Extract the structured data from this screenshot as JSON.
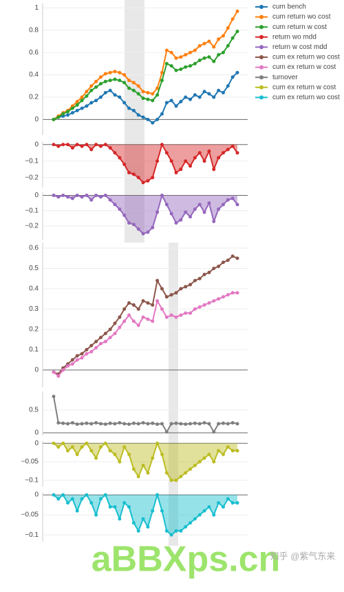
{
  "chart_data": [
    {
      "type": "line",
      "ylim": [
        -0.14,
        1.04
      ],
      "yticks": [
        0,
        0.2,
        0.4,
        0.6,
        0.8,
        1
      ],
      "grid": true,
      "series": [
        {
          "name": "cum bench",
          "color": "#1f77b4",
          "values": [
            0,
            0.02,
            0.03,
            0.04,
            0.06,
            0.08,
            0.1,
            0.12,
            0.15,
            0.17,
            0.2,
            0.24,
            0.26,
            0.22,
            0.2,
            0.15,
            0.1,
            0.08,
            0.04,
            0.02,
            0,
            -0.03,
            0,
            0.05,
            0.15,
            0.17,
            0.12,
            0.16,
            0.2,
            0.18,
            0.22,
            0.2,
            0.25,
            0.23,
            0.2,
            0.26,
            0.24,
            0.3,
            0.38,
            0.42
          ]
        },
        {
          "name": "cum return wo cost",
          "color": "#ff7f0e",
          "values": [
            0,
            0.03,
            0.06,
            0.08,
            0.12,
            0.16,
            0.2,
            0.25,
            0.3,
            0.34,
            0.38,
            0.41,
            0.42,
            0.43,
            0.42,
            0.4,
            0.35,
            0.33,
            0.3,
            0.25,
            0.24,
            0.23,
            0.28,
            0.42,
            0.62,
            0.6,
            0.55,
            0.56,
            0.58,
            0.6,
            0.62,
            0.66,
            0.68,
            0.7,
            0.65,
            0.72,
            0.75,
            0.82,
            0.9,
            0.97
          ]
        },
        {
          "name": "cum return w cost",
          "color": "#2ca02c",
          "values": [
            0,
            0.02,
            0.05,
            0.07,
            0.1,
            0.13,
            0.17,
            0.21,
            0.26,
            0.29,
            0.32,
            0.34,
            0.35,
            0.36,
            0.35,
            0.33,
            0.28,
            0.26,
            0.23,
            0.19,
            0.18,
            0.17,
            0.22,
            0.35,
            0.5,
            0.48,
            0.44,
            0.45,
            0.47,
            0.48,
            0.5,
            0.53,
            0.55,
            0.56,
            0.52,
            0.58,
            0.6,
            0.66,
            0.73,
            0.79
          ]
        }
      ]
    },
    {
      "type": "area",
      "ylim": [
        -0.26,
        0.02
      ],
      "yticks": [
        0,
        {
          "value": -0.1,
          "label": "−0.1"
        },
        {
          "value": -0.2,
          "label": "−0.2"
        }
      ],
      "grid": true,
      "series": [
        {
          "name": "return wo mdd",
          "color": "#d62728",
          "values": [
            0,
            -0.01,
            0,
            0,
            -0.02,
            0,
            -0.01,
            0,
            -0.03,
            0,
            -0.01,
            0,
            -0.02,
            -0.05,
            -0.08,
            -0.12,
            -0.17,
            -0.18,
            -0.2,
            -0.23,
            -0.22,
            -0.2,
            -0.1,
            0,
            -0.05,
            -0.1,
            -0.17,
            -0.15,
            -0.1,
            -0.13,
            -0.08,
            -0.05,
            -0.1,
            -0.04,
            -0.15,
            -0.08,
            -0.05,
            -0.03,
            -0.01,
            -0.05
          ]
        }
      ]
    },
    {
      "type": "area",
      "ylim": [
        -0.29,
        0.02
      ],
      "yticks": [
        0,
        {
          "value": -0.1,
          "label": "−0.1"
        },
        {
          "value": -0.2,
          "label": "−0.2"
        }
      ],
      "grid": true,
      "series": [
        {
          "name": "return w cost mdd",
          "color": "#9467bd",
          "values": [
            0,
            -0.01,
            0,
            -0.01,
            -0.02,
            0,
            -0.01,
            0,
            -0.03,
            0,
            -0.01,
            0,
            -0.03,
            -0.06,
            -0.09,
            -0.13,
            -0.18,
            -0.19,
            -0.22,
            -0.25,
            -0.24,
            -0.21,
            -0.11,
            0,
            -0.06,
            -0.12,
            -0.18,
            -0.16,
            -0.11,
            -0.14,
            -0.09,
            -0.06,
            -0.11,
            -0.05,
            -0.17,
            -0.09,
            -0.06,
            -0.03,
            -0.02,
            -0.06
          ]
        }
      ]
    },
    {
      "type": "line",
      "ylim": [
        -0.085,
        0.627
      ],
      "yticks": [
        0,
        0.1,
        0.2,
        0.3,
        0.4,
        0.5,
        0.6
      ],
      "grid": true,
      "series": [
        {
          "name": "cum ex return wo cost",
          "color": "#8c564b",
          "values": [
            -0.01,
            -0.02,
            0.01,
            0.03,
            0.05,
            0.07,
            0.08,
            0.1,
            0.12,
            0.14,
            0.16,
            0.18,
            0.2,
            0.23,
            0.26,
            0.3,
            0.33,
            0.32,
            0.3,
            0.34,
            0.33,
            0.32,
            0.44,
            0.4,
            0.36,
            0.37,
            0.38,
            0.4,
            0.41,
            0.42,
            0.44,
            0.45,
            0.47,
            0.48,
            0.5,
            0.51,
            0.53,
            0.54,
            0.56,
            0.55
          ]
        },
        {
          "name": "cum ex return w cost",
          "color": "#e377c2",
          "values": [
            -0.01,
            -0.03,
            0,
            0.02,
            0.03,
            0.05,
            0.06,
            0.08,
            0.09,
            0.11,
            0.13,
            0.14,
            0.16,
            0.18,
            0.21,
            0.24,
            0.27,
            0.24,
            0.22,
            0.26,
            0.25,
            0.24,
            0.34,
            0.3,
            0.26,
            0.27,
            0.26,
            0.27,
            0.28,
            0.28,
            0.3,
            0.31,
            0.32,
            0.33,
            0.34,
            0.35,
            0.36,
            0.37,
            0.38,
            0.38
          ]
        }
      ]
    },
    {
      "type": "line",
      "ylim": [
        -0.06,
        0.91
      ],
      "yticks": [
        0,
        0.5
      ],
      "grid": true,
      "series": [
        {
          "name": "turnover",
          "color": "#7f7f7f",
          "values": [
            0.8,
            0.22,
            0.21,
            0.2,
            0.22,
            0.19,
            0.2,
            0.21,
            0.2,
            0.22,
            0.2,
            0.19,
            0.21,
            0.2,
            0.22,
            0.2,
            0.19,
            0.21,
            0.2,
            0.22,
            0.2,
            0.21,
            0.19,
            0.2,
            0.02,
            0.2,
            0.21,
            0.2,
            0.19,
            0.2,
            0.21,
            0.2,
            0.22,
            0.2,
            0.02,
            0.2,
            0.21,
            0.2,
            0.22,
            0.2
          ]
        }
      ]
    },
    {
      "type": "area",
      "ylim": [
        -0.117,
        0.006
      ],
      "yticks": [
        0,
        {
          "value": -0.05,
          "label": "−0.05"
        },
        {
          "value": -0.1,
          "label": "−0.1"
        }
      ],
      "grid": true,
      "series": [
        {
          "name": "cum ex return w cost",
          "color": "#bcbd22",
          "values": [
            0,
            -0.01,
            0,
            -0.02,
            -0.01,
            -0.03,
            -0.01,
            0,
            -0.02,
            -0.04,
            -0.01,
            0,
            -0.02,
            -0.03,
            -0.05,
            -0.01,
            -0.03,
            -0.07,
            -0.09,
            -0.06,
            -0.08,
            -0.04,
            0,
            -0.03,
            -0.08,
            -0.1,
            -0.1,
            -0.09,
            -0.08,
            -0.07,
            -0.06,
            -0.05,
            -0.04,
            -0.03,
            -0.05,
            -0.02,
            -0.03,
            -0.01,
            -0.02,
            -0.02
          ]
        }
      ]
    },
    {
      "type": "area",
      "ylim": [
        -0.117,
        0.007
      ],
      "yticks": [
        0,
        {
          "value": -0.05,
          "label": "−0.05"
        },
        {
          "value": -0.1,
          "label": "−0.1"
        }
      ],
      "grid": true,
      "series": [
        {
          "name": "cum ex return wo cost",
          "color": "#17becf",
          "values": [
            0,
            -0.01,
            0,
            -0.02,
            -0.01,
            -0.04,
            -0.01,
            0,
            -0.02,
            -0.05,
            -0.01,
            0,
            -0.03,
            -0.03,
            -0.06,
            -0.02,
            -0.03,
            -0.07,
            -0.09,
            -0.06,
            -0.08,
            -0.04,
            0,
            -0.04,
            -0.09,
            -0.1,
            -0.09,
            -0.09,
            -0.08,
            -0.07,
            -0.06,
            -0.05,
            -0.04,
            -0.03,
            -0.05,
            -0.02,
            -0.03,
            -0.01,
            -0.02,
            -0.02
          ]
        }
      ]
    }
  ],
  "watermark": "aBBXps.cn",
  "credit": "知乎 @紫气东来"
}
